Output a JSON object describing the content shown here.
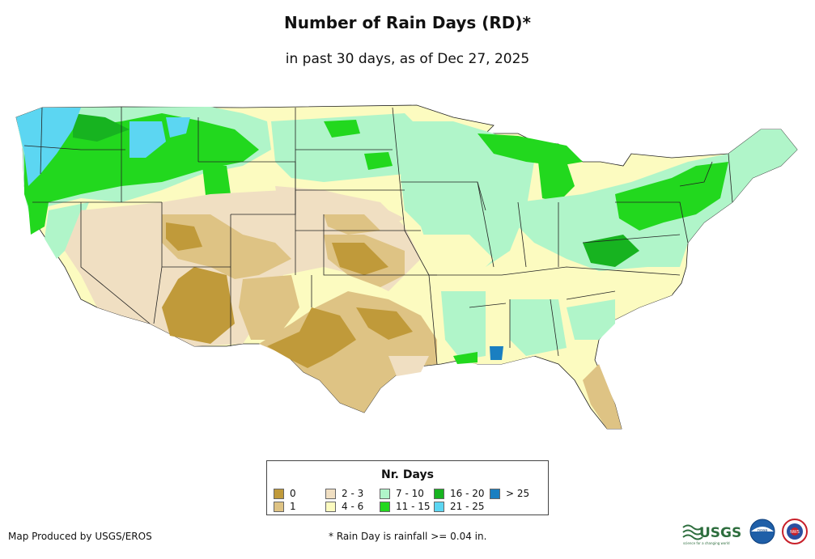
{
  "title": "Number of Rain Days (RD)*",
  "subtitle": "in past 30 days, as of Dec 27, 2025",
  "legend": {
    "title": "Nr. Days",
    "items": [
      {
        "label": "0",
        "color": "#C09A3A"
      },
      {
        "label": "1",
        "color": "#DEC384"
      },
      {
        "label": "2 - 3",
        "color": "#F0DFC2"
      },
      {
        "label": "4 - 6",
        "color": "#FCFBC0"
      },
      {
        "label": "7 - 10",
        "color": "#B0F5C9"
      },
      {
        "label": "11 - 15",
        "color": "#22D81E"
      },
      {
        "label": "16 - 20",
        "color": "#17B320"
      },
      {
        "label": "21 - 25",
        "color": "#5CD6F2"
      },
      {
        "label": "> 25",
        "color": "#1A7FC1"
      }
    ]
  },
  "footer": {
    "producer": "Map Produced by USGS/EROS",
    "note": "* Rain Day is rainfall >= 0.04 in."
  },
  "logos": {
    "usgs_text": "USGS",
    "usgs_tagline": "science for a changing world",
    "noaa": "noaa",
    "nws": "NWS"
  }
}
